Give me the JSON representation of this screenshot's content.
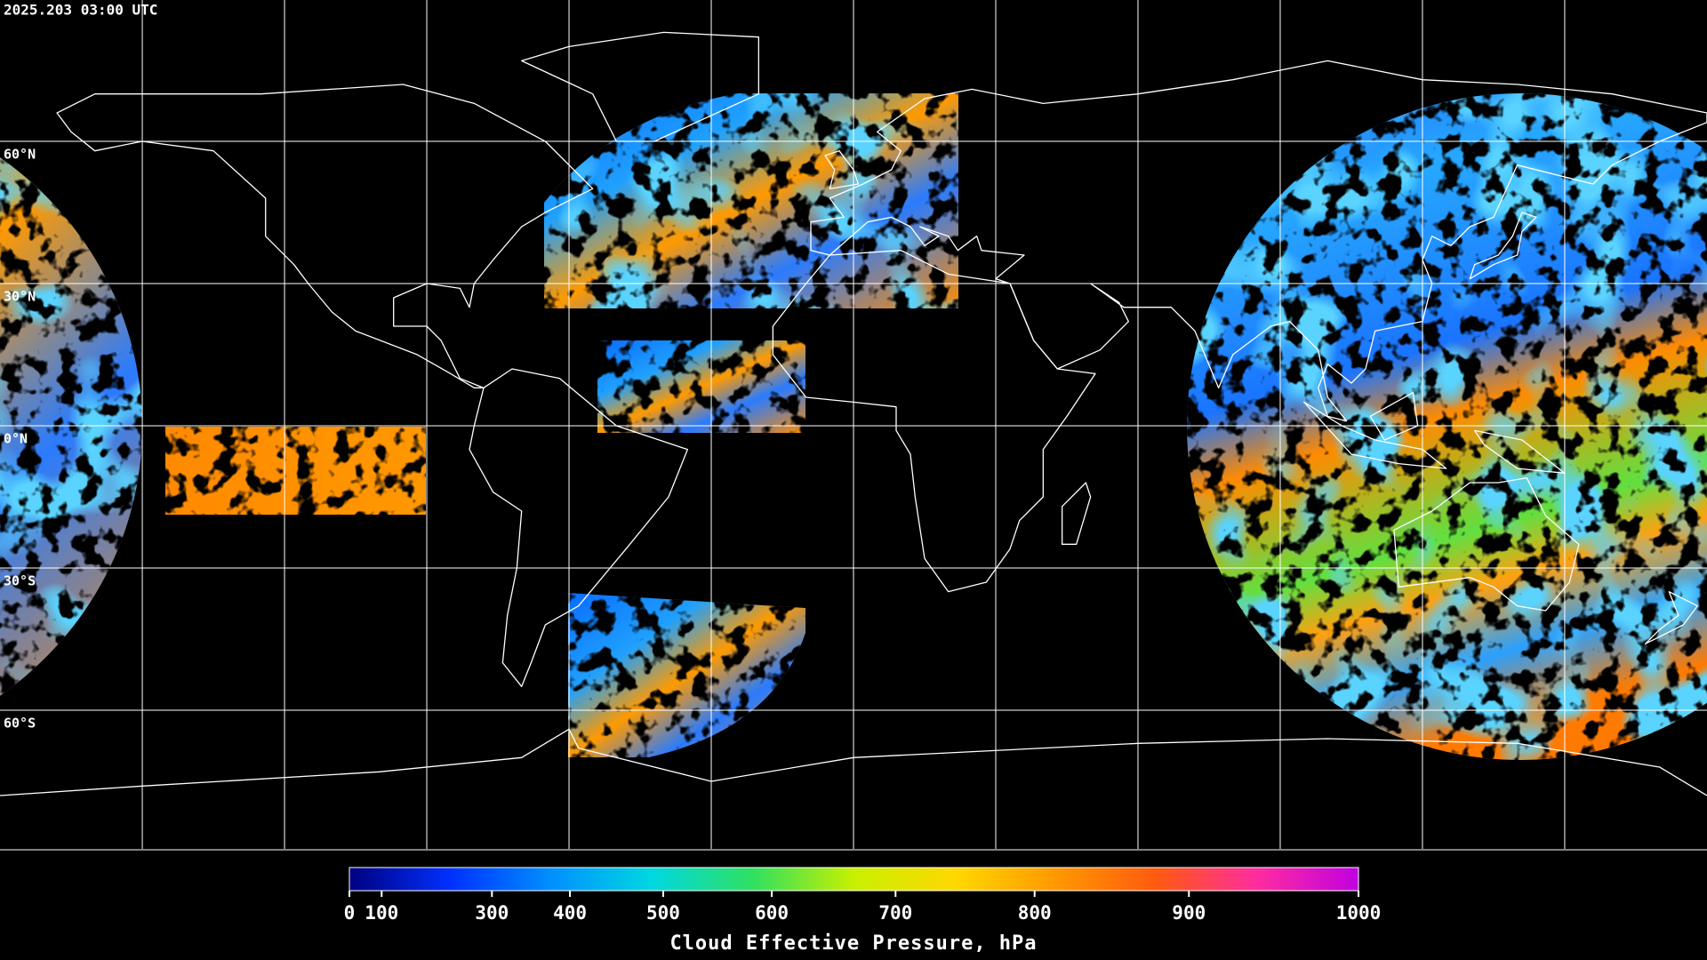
{
  "timestamp": "2025.203 03:00 UTC",
  "map": {
    "lat_labels": [
      "60°N",
      "30°N",
      "0°N",
      "30°S",
      "60°S"
    ]
  },
  "colorbar": {
    "title": "Cloud Effective Pressure, hPa",
    "range": [
      0,
      1000
    ],
    "ticks": [
      0,
      100,
      300,
      400,
      500,
      600,
      700,
      800,
      900,
      1000
    ],
    "colors": [
      "#000080",
      "#0030ff",
      "#0090ff",
      "#00d8e0",
      "#30e060",
      "#c8f000",
      "#ffd800",
      "#ff9800",
      "#ff5a10",
      "#ff2ca0",
      "#c000e0"
    ]
  }
}
